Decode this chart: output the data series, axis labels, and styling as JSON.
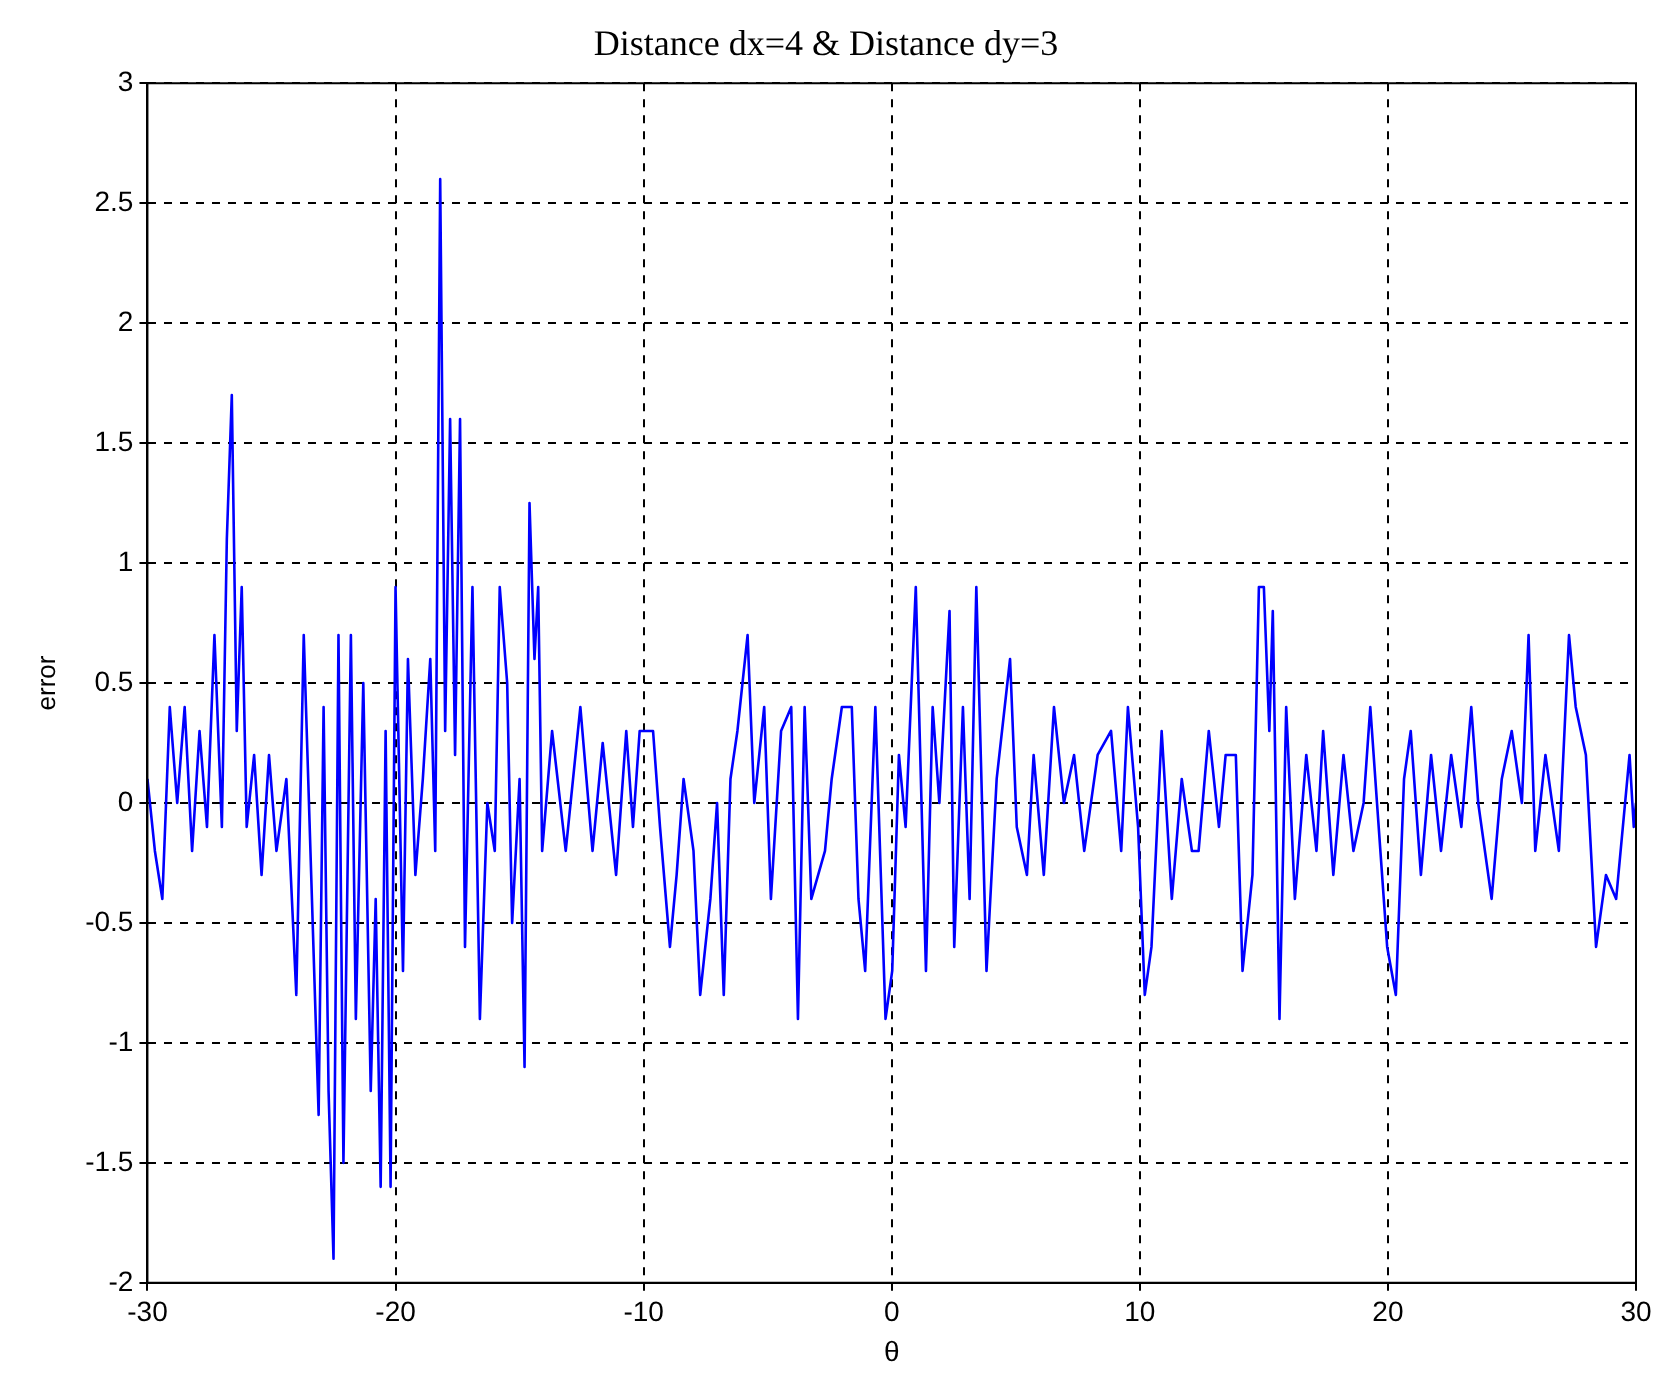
{
  "chart_data": {
    "type": "line",
    "title": "Distance dx=4 & Distance dy=3",
    "xlabel": "θ",
    "ylabel": "error",
    "xlim": [
      -30,
      30
    ],
    "xticks": [
      -30,
      -20,
      -10,
      0,
      10,
      20,
      30
    ],
    "ylim": [
      -2,
      3
    ],
    "yticks": [
      -2,
      -1.5,
      -1,
      -0.5,
      0,
      0.5,
      1,
      1.5,
      2,
      2.5,
      3
    ],
    "grid": true,
    "legend": false,
    "marker": "none",
    "line_style": "solid",
    "series": [
      {
        "color": "#0000ff",
        "x": [
          -30,
          -29.7,
          -29.4,
          -29.1,
          -28.8,
          -28.5,
          -28.2,
          -27.9,
          -27.6,
          -27.3,
          -27.0,
          -26.8,
          -26.6,
          -26.4,
          -26.2,
          -26.0,
          -25.7,
          -25.4,
          -25.1,
          -24.8,
          -24.4,
          -24.0,
          -23.7,
          -23.4,
          -23.1,
          -22.9,
          -22.7,
          -22.5,
          -22.3,
          -22.1,
          -21.8,
          -21.6,
          -21.3,
          -21.0,
          -20.8,
          -20.6,
          -20.4,
          -20.2,
          -20.0,
          -19.7,
          -19.5,
          -19.2,
          -18.9,
          -18.6,
          -18.4,
          -18.2,
          -18.0,
          -17.8,
          -17.6,
          -17.4,
          -17.2,
          -16.9,
          -16.6,
          -16.3,
          -16.0,
          -15.8,
          -15.5,
          -15.3,
          -15.0,
          -14.8,
          -14.6,
          -14.4,
          -14.25,
          -14.09,
          -13.69,
          -13.14,
          -12.55,
          -12.06,
          -11.65,
          -11.11,
          -10.7,
          -10.43,
          -10.16,
          -9.62,
          -9.34,
          -8.94,
          -8.67,
          -8.39,
          -7.99,
          -7.72,
          -7.31,
          -7.04,
          -6.77,
          -6.5,
          -6.22,
          -5.81,
          -5.54,
          -5.14,
          -4.87,
          -4.46,
          -4.05,
          -3.78,
          -3.51,
          -3.24,
          -2.69,
          -2.42,
          -2.01,
          -1.61,
          -1.34,
          -1.07,
          -0.66,
          -0.25,
          0.02,
          0.29,
          0.56,
          0.97,
          1.38,
          1.65,
          1.92,
          2.33,
          2.52,
          2.87,
          3.14,
          3.41,
          3.82,
          4.23,
          4.77,
          5.04,
          5.45,
          5.72,
          6.13,
          6.54,
          6.94,
          7.35,
          7.76,
          8.3,
          8.84,
          9.25,
          9.52,
          9.93,
          10.2,
          10.47,
          10.88,
          11.29,
          11.69,
          12.1,
          12.37,
          12.78,
          13.19,
          13.46,
          13.87,
          14.14,
          14.54,
          14.8,
          15.0,
          15.22,
          15.36,
          15.63,
          15.9,
          16.25,
          16.71,
          17.12,
          17.39,
          17.8,
          18.21,
          18.61,
          19.02,
          19.29,
          19.56,
          19.97,
          20.32,
          20.65,
          20.92,
          21.33,
          21.74,
          22.14,
          22.55,
          22.96,
          23.36,
          23.64,
          24.18,
          24.59,
          24.99,
          25.4,
          25.67,
          25.94,
          26.35,
          26.89,
          27.3,
          27.57,
          27.98,
          28.39,
          28.79,
          29.2,
          29.74,
          29.91,
          30
        ],
        "values": [
          0.1,
          -0.2,
          -0.4,
          0.4,
          0.0,
          0.4,
          -0.2,
          0.3,
          -0.1,
          0.7,
          -0.1,
          1.1,
          1.7,
          0.3,
          0.9,
          -0.1,
          0.2,
          -0.3,
          0.2,
          -0.2,
          0.1,
          -0.8,
          0.7,
          -0.3,
          -1.3,
          0.4,
          -1.2,
          -1.9,
          0.7,
          -1.5,
          0.7,
          -0.9,
          0.5,
          -1.2,
          -0.4,
          -1.6,
          0.3,
          -1.6,
          0.9,
          -0.7,
          0.6,
          -0.3,
          0.1,
          0.6,
          -0.2,
          2.6,
          0.3,
          1.6,
          0.2,
          1.6,
          -0.6,
          0.9,
          -0.9,
          0.0,
          -0.2,
          0.9,
          0.5,
          -0.5,
          0.1,
          -1.1,
          1.25,
          0.6,
          0.9,
          -0.2,
          0.3,
          -0.2,
          0.4,
          -0.2,
          0.25,
          -0.3,
          0.3,
          -0.1,
          0.3,
          0.3,
          -0.1,
          -0.6,
          -0.3,
          0.1,
          -0.2,
          -0.8,
          -0.4,
          0.0,
          -0.8,
          0.1,
          0.3,
          0.7,
          0.0,
          0.4,
          -0.4,
          0.3,
          0.4,
          -0.9,
          0.4,
          -0.4,
          -0.2,
          0.1,
          0.4,
          0.4,
          -0.4,
          -0.7,
          0.4,
          -0.9,
          -0.7,
          0.2,
          -0.1,
          0.9,
          -0.7,
          0.4,
          0.0,
          0.8,
          -0.6,
          0.4,
          -0.4,
          0.9,
          -0.7,
          0.1,
          0.6,
          -0.1,
          -0.3,
          0.2,
          -0.3,
          0.4,
          0.0,
          0.2,
          -0.2,
          0.2,
          0.3,
          -0.2,
          0.4,
          -0.1,
          -0.8,
          -0.6,
          0.3,
          -0.4,
          0.1,
          -0.2,
          -0.2,
          0.3,
          -0.1,
          0.2,
          0.2,
          -0.7,
          -0.3,
          0.9,
          0.9,
          0.3,
          0.8,
          -0.9,
          0.4,
          -0.4,
          0.2,
          -0.2,
          0.3,
          -0.3,
          0.2,
          -0.2,
          0.0,
          0.4,
          0.0,
          -0.6,
          -0.8,
          0.1,
          0.3,
          -0.3,
          0.2,
          -0.2,
          0.2,
          -0.1,
          0.4,
          0.0,
          -0.4,
          0.1,
          0.3,
          0.0,
          0.7,
          -0.2,
          0.2,
          -0.2,
          0.7,
          0.4,
          0.2,
          -0.6,
          -0.3,
          -0.4,
          0.2,
          -0.1,
          0.0
        ]
      }
    ]
  }
}
